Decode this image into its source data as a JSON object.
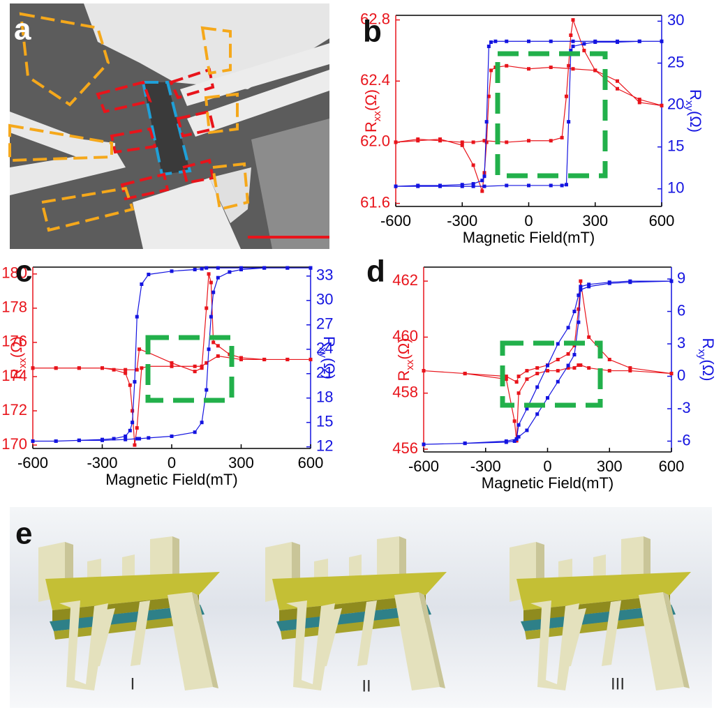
{
  "panel_a": {
    "label": "a"
  },
  "chart_data": [
    {
      "type": "line",
      "label": "b",
      "xlabel": "Magnetic Field(mT)",
      "ylabel": [
        "R",
        "xx",
        "(Ω)"
      ],
      "y2label": [
        "R",
        "xy",
        "(Ω)"
      ],
      "xlim": [
        -600,
        600
      ],
      "xticks": [
        -600,
        -300,
        0,
        300,
        600
      ],
      "ylim": [
        61.58,
        62.83
      ],
      "yticks": [
        61.6,
        {
          "value": 62,
          "label": "62.0"
        },
        62.4,
        62.8
      ],
      "y2lim": [
        7.9,
        30.7
      ],
      "y2ticks": [
        10,
        15,
        20,
        25,
        30
      ],
      "x": [
        -600,
        -500,
        -400,
        -300,
        -250,
        -200,
        -100,
        0,
        100,
        150,
        170,
        180,
        190,
        200,
        250,
        300,
        400,
        500,
        600,
        600,
        500,
        400,
        300,
        200,
        100,
        0,
        -100,
        -150,
        -170,
        -180,
        -190,
        -200,
        -210,
        -250,
        -300,
        -400,
        -500,
        -600
      ],
      "series": [
        {
          "color": "#e8141b",
          "values": [
            62.0,
            62.02,
            62.01,
            62.0,
            62.0,
            62.01,
            62.0,
            62.01,
            62.01,
            62.03,
            62.3,
            62.5,
            62.7,
            62.8,
            62.6,
            62.47,
            62.35,
            62.28,
            62.24,
            62.24,
            62.26,
            62.4,
            62.47,
            62.48,
            62.49,
            62.48,
            62.5,
            62.49,
            62.47,
            62.3,
            62.0,
            61.8,
            61.68,
            61.85,
            61.98,
            62.02,
            62.01,
            62.0
          ]
        },
        {
          "color": "#1414e0",
          "axis": "y2",
          "values": [
            10.3,
            10.3,
            10.3,
            10.3,
            10.3,
            10.3,
            10.4,
            10.4,
            10.4,
            10.4,
            10.5,
            18,
            26.5,
            27,
            27.3,
            27.5,
            27.5,
            27.6,
            27.6,
            27.6,
            27.6,
            27.6,
            27.6,
            27.6,
            27.6,
            27.6,
            27.6,
            27.6,
            27.5,
            27,
            18,
            11.5,
            11,
            10.6,
            10.5,
            10.4,
            10.4,
            10.3
          ]
        }
      ]
    },
    {
      "type": "line",
      "label": "c",
      "xlabel": "Magnetic Field(mT)",
      "ylabel": [
        "R",
        "xx",
        "(Ω)"
      ],
      "y2label": [
        "R",
        "xy",
        "(Ω)"
      ],
      "xlim": [
        -600,
        600
      ],
      "xticks": [
        -600,
        -300,
        0,
        300,
        600
      ],
      "ylim": [
        169.8,
        180.4
      ],
      "yticks": [
        170,
        172,
        174,
        176,
        178,
        180
      ],
      "y2lim": [
        11.8,
        34.1
      ],
      "y2ticks": [
        12,
        15,
        18,
        21,
        24,
        27,
        30,
        33
      ],
      "x": [
        -600,
        -500,
        -400,
        -300,
        -200,
        -150,
        -140,
        -100,
        0,
        100,
        130,
        150,
        160,
        170,
        180,
        200,
        250,
        300,
        400,
        500,
        600,
        600,
        500,
        400,
        300,
        200,
        150,
        130,
        100,
        0,
        -100,
        -130,
        -150,
        -160,
        -170,
        -180,
        -200,
        -250,
        -300,
        -400,
        -500,
        -600
      ],
      "series": [
        {
          "color": "#e8141b",
          "values": [
            174.5,
            174.5,
            174.5,
            174.5,
            174.4,
            174.4,
            175.6,
            175.4,
            174.8,
            174.3,
            174.5,
            178,
            180,
            179.5,
            176,
            175.8,
            175.3,
            175.1,
            175,
            175,
            175,
            175,
            175,
            175,
            175,
            175.2,
            174.8,
            174.6,
            174.6,
            174.6,
            174.6,
            174.5,
            171,
            170,
            172,
            173.5,
            174.2,
            174.4,
            174.5,
            174.5,
            174.5,
            174.5
          ]
        },
        {
          "color": "#1414e0",
          "axis": "y2",
          "values": [
            12.7,
            12.7,
            12.8,
            12.8,
            12.9,
            13,
            13,
            13.1,
            13.3,
            13.8,
            15,
            19,
            24,
            28,
            31,
            32.8,
            33.5,
            33.8,
            34,
            34,
            34,
            34,
            34,
            34,
            34,
            34,
            34,
            33.9,
            33.8,
            33.6,
            33.2,
            32,
            28,
            20,
            15,
            14,
            13.3,
            13,
            12.9,
            12.8,
            12.7,
            12.7
          ]
        }
      ]
    },
    {
      "type": "line",
      "label": "d",
      "xlabel": "Magnetic Field(mT)",
      "ylabel": [
        "R",
        "xx",
        "(Ω)"
      ],
      "y2label": [
        "R",
        "xy",
        "(Ω)"
      ],
      "xlim": [
        -600,
        600
      ],
      "xticks": [
        -600,
        -300,
        0,
        300,
        600
      ],
      "ylim": [
        455.9,
        462.5
      ],
      "yticks": [
        456,
        458,
        460,
        462
      ],
      "y2lim": [
        -7.0,
        10.1
      ],
      "y2ticks": [
        -6,
        -3,
        0,
        3,
        6,
        9
      ],
      "x": [
        -600,
        -400,
        -200,
        -150,
        -140,
        -100,
        -50,
        0,
        50,
        100,
        130,
        150,
        160,
        200,
        300,
        400,
        600,
        600,
        400,
        300,
        200,
        160,
        150,
        130,
        100,
        50,
        0,
        -50,
        -100,
        -140,
        -150,
        -160,
        -200,
        -400,
        -600
      ],
      "series": [
        {
          "color": "#e8141b",
          "values": [
            458.8,
            458.7,
            458.6,
            458.4,
            458.6,
            458.8,
            458.9,
            459,
            459.2,
            459.4,
            459.7,
            461,
            462,
            460,
            459.2,
            458.9,
            458.7,
            458.7,
            458.8,
            458.8,
            458.9,
            459,
            459,
            458.9,
            458.9,
            458.8,
            458.8,
            458.7,
            458.5,
            458,
            456.3,
            457,
            458.5,
            458.7,
            458.8
          ]
        },
        {
          "color": "#1414e0",
          "axis": "y2",
          "values": [
            -6.3,
            -6.2,
            -6,
            -5.8,
            -5.6,
            -5,
            -3.5,
            -2,
            -0.5,
            1,
            2,
            5,
            8,
            8.3,
            8.6,
            8.7,
            8.8,
            8.8,
            8.8,
            8.7,
            8.5,
            8.3,
            7.5,
            6,
            4.5,
            3,
            1,
            -1,
            -3,
            -4.5,
            -5.8,
            -6,
            -6.1,
            -6.2,
            -6.3
          ]
        }
      ]
    }
  ],
  "panel_e": {
    "label": "e",
    "captions": [
      "I",
      "II",
      "III"
    ]
  }
}
